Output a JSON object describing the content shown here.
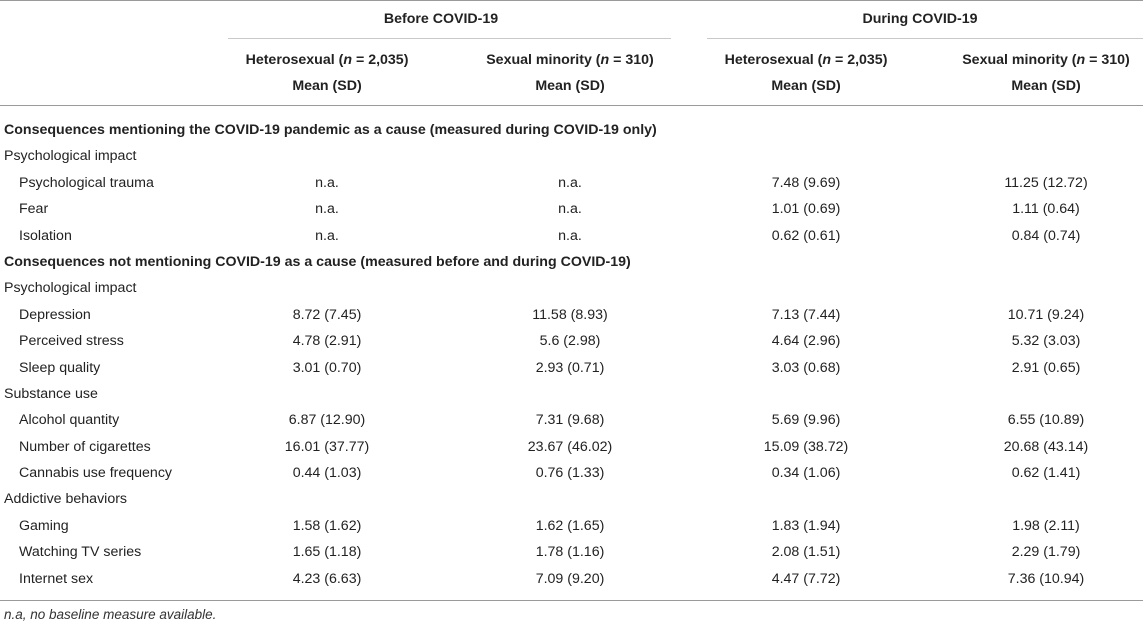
{
  "header": {
    "group_before": "Before COVID-19",
    "group_during": "During COVID-19",
    "hetero_prefix": "Heterosexual (",
    "minority_prefix": "Sexual minority (",
    "n_symbol": "n",
    "hetero_n": " = 2,035)",
    "minority_n": " = 310)",
    "mean_sd": "Mean (SD)"
  },
  "sections": [
    {
      "title": "Consequences mentioning the COVID-19 pandemic as a cause (measured during COVID-19 only)",
      "groups": [
        {
          "name": "Psychological impact",
          "rows": [
            {
              "label": "Psychological trauma",
              "values": [
                "n.a.",
                "n.a.",
                "7.48 (9.69)",
                "11.25 (12.72)"
              ]
            },
            {
              "label": "Fear",
              "values": [
                "n.a.",
                "n.a.",
                "1.01 (0.69)",
                "1.11 (0.64)"
              ]
            },
            {
              "label": "Isolation",
              "values": [
                "n.a.",
                "n.a.",
                "0.62 (0.61)",
                "0.84 (0.74)"
              ]
            }
          ]
        }
      ]
    },
    {
      "title": "Consequences not mentioning COVID-19 as a cause (measured before and during COVID-19)",
      "groups": [
        {
          "name": "Psychological impact",
          "rows": [
            {
              "label": "Depression",
              "values": [
                "8.72 (7.45)",
                "11.58 (8.93)",
                "7.13 (7.44)",
                "10.71 (9.24)"
              ]
            },
            {
              "label": "Perceived stress",
              "values": [
                "4.78 (2.91)",
                "5.6 (2.98)",
                "4.64 (2.96)",
                "5.32 (3.03)"
              ]
            },
            {
              "label": "Sleep quality",
              "values": [
                "3.01 (0.70)",
                "2.93 (0.71)",
                "3.03 (0.68)",
                "2.91 (0.65)"
              ]
            }
          ]
        },
        {
          "name": "Substance use",
          "rows": [
            {
              "label": "Alcohol quantity",
              "values": [
                "6.87 (12.90)",
                "7.31 (9.68)",
                "5.69 (9.96)",
                "6.55 (10.89)"
              ]
            },
            {
              "label": "Number of cigarettes",
              "values": [
                "16.01 (37.77)",
                "23.67 (46.02)",
                "15.09 (38.72)",
                "20.68 (43.14)"
              ]
            },
            {
              "label": "Cannabis use frequency",
              "values": [
                "0.44 (1.03)",
                "0.76 (1.33)",
                "0.34 (1.06)",
                "0.62 (1.41)"
              ]
            }
          ]
        },
        {
          "name": "Addictive behaviors",
          "rows": [
            {
              "label": "Gaming",
              "values": [
                "1.58 (1.62)",
                "1.62 (1.65)",
                "1.83 (1.94)",
                "1.98 (2.11)"
              ]
            },
            {
              "label": "Watching TV series",
              "values": [
                "1.65 (1.18)",
                "1.78 (1.16)",
                "2.08 (1.51)",
                "2.29 (1.79)"
              ]
            },
            {
              "label": "Internet sex",
              "values": [
                "4.23 (6.63)",
                "7.09 (9.20)",
                "4.47 (7.72)",
                "7.36 (10.94)"
              ]
            }
          ]
        }
      ]
    }
  ],
  "footnote": "n.a, no baseline measure available."
}
